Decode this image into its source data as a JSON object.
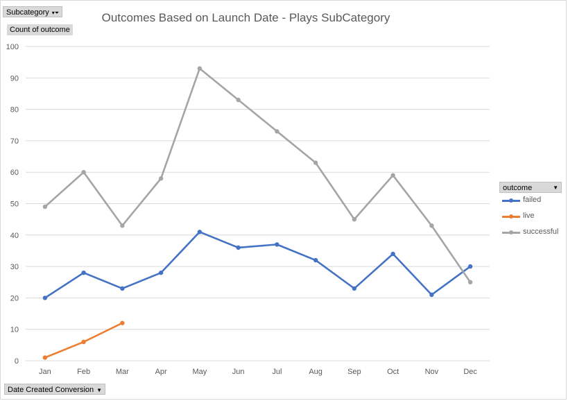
{
  "filter_button": {
    "label": "Subcategory",
    "icon": "filter-dropdown-icon"
  },
  "yaxis_field": {
    "label": "Count of outcome"
  },
  "xaxis_field": {
    "label": "Date Created Conversion",
    "icon": "dropdown-arrow-icon"
  },
  "legend_field": {
    "label": "outcome",
    "icon": "dropdown-arrow-icon"
  },
  "chart_data": {
    "type": "line",
    "title": "Outcomes Based on Launch Date - Plays SubCategory",
    "categories": [
      "Jan",
      "Feb",
      "Mar",
      "Apr",
      "May",
      "Jun",
      "Jul",
      "Aug",
      "Sep",
      "Oct",
      "Nov",
      "Dec"
    ],
    "series": [
      {
        "name": "failed",
        "color": "#4472c4",
        "values": [
          20,
          28,
          23,
          28,
          41,
          36,
          37,
          32,
          23,
          34,
          21,
          30
        ]
      },
      {
        "name": "live",
        "color": "#ed7d31",
        "values": [
          1,
          6,
          12,
          null,
          null,
          null,
          null,
          null,
          null,
          null,
          null,
          null
        ]
      },
      {
        "name": "successful",
        "color": "#a5a5a5",
        "values": [
          49,
          60,
          43,
          58,
          93,
          83,
          73,
          63,
          45,
          59,
          43,
          25
        ]
      }
    ],
    "ylim": [
      0,
      100
    ],
    "yticks": [
      0,
      10,
      20,
      30,
      40,
      50,
      60,
      70,
      80,
      90,
      100
    ],
    "grid": true,
    "legend_position": "right"
  }
}
